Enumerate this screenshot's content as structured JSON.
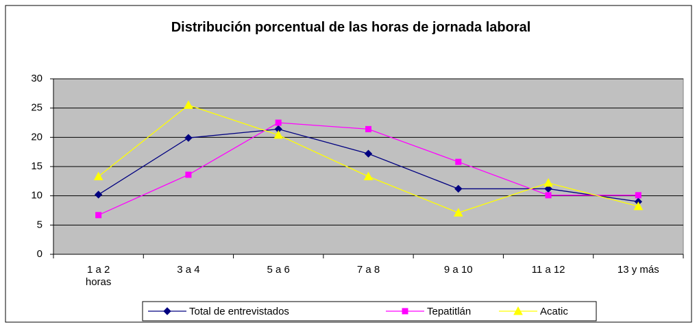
{
  "chart_data": {
    "type": "line",
    "title": "Distribución porcentual de las horas de jornada laboral",
    "categories": [
      "1 a 2 horas",
      "3 a 4",
      "5 a 6",
      "7 a 8",
      "9 a 10",
      "11 a 12",
      "13 y más"
    ],
    "series": [
      {
        "name": "Total de entrevistados",
        "color": "#000080",
        "values": [
          10.2,
          19.9,
          21.4,
          17.2,
          11.2,
          11.2,
          9.0
        ]
      },
      {
        "name": "Tepatitlán",
        "color": "#ff00ff",
        "values": [
          6.7,
          13.6,
          22.5,
          21.4,
          15.8,
          10.1,
          10.1
        ]
      },
      {
        "name": "Acatic",
        "color": "#ffff00",
        "values": [
          13.3,
          25.5,
          20.4,
          13.3,
          7.1,
          12.2,
          8.2
        ]
      }
    ],
    "ylim": [
      0,
      30
    ],
    "yticks": [
      0,
      5,
      10,
      15,
      20,
      25,
      30
    ],
    "grid": true,
    "legend": "bottom"
  }
}
